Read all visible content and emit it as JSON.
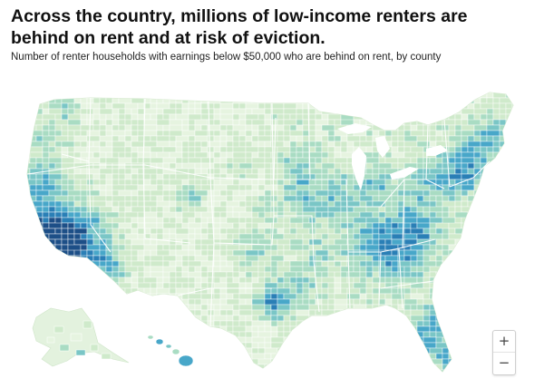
{
  "header": {
    "title": "Across the country, millions of low-income renters are behind on rent and at risk of eviction.",
    "subtitle": "Number of renter households with earnings below $50,000 who are behind on rent, by county"
  },
  "map": {
    "palette": [
      "#e6f4e0",
      "#cfeacb",
      "#a9dcc3",
      "#7ac6c6",
      "#48a7c9",
      "#2a7fb6",
      "#1d4f87"
    ],
    "land_default": "#e6f4e0",
    "border_color": "#ffffff",
    "regions": [
      {
        "name": "Alaska"
      },
      {
        "name": "Hawaii"
      }
    ]
  },
  "controls": {
    "zoom_in_label": "+",
    "zoom_out_label": "−"
  }
}
